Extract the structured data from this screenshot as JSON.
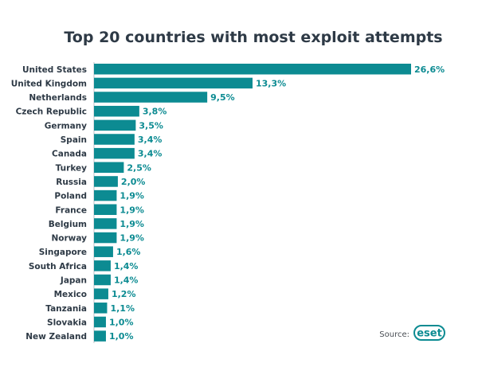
{
  "chart_data": {
    "type": "bar",
    "orientation": "horizontal",
    "title": "Top 20 countries with most exploit attempts",
    "categories": [
      "United States",
      "United Kingdom",
      "Netherlands",
      "Czech Republic",
      "Germany",
      "Spain",
      "Canada",
      "Turkey",
      "Russia",
      "Poland",
      "France",
      "Belgium",
      "Norway",
      "Singapore",
      "South Africa",
      "Japan",
      "Mexico",
      "Tanzania",
      "Slovakia",
      "New Zealand"
    ],
    "values": [
      26.6,
      13.3,
      9.5,
      3.8,
      3.5,
      3.4,
      3.4,
      2.5,
      2.0,
      1.9,
      1.9,
      1.9,
      1.9,
      1.6,
      1.4,
      1.4,
      1.2,
      1.1,
      1.0,
      1.0
    ],
    "value_labels": [
      "26,6%",
      "13,3%",
      "9,5%",
      "3,8%",
      "3,5%",
      "3,4%",
      "3,4%",
      "2,5%",
      "2,0%",
      "1,9%",
      "1,9%",
      "1,9%",
      "1,9%",
      "1,6%",
      "1,4%",
      "1,4%",
      "1,2%",
      "1,1%",
      "1,0%",
      "1,0%"
    ],
    "xlim": [
      0,
      26.6
    ],
    "grid": false,
    "legend": "none",
    "bar_color": "#0c8b92"
  },
  "source": {
    "label": "Source:",
    "logo": "eset"
  }
}
